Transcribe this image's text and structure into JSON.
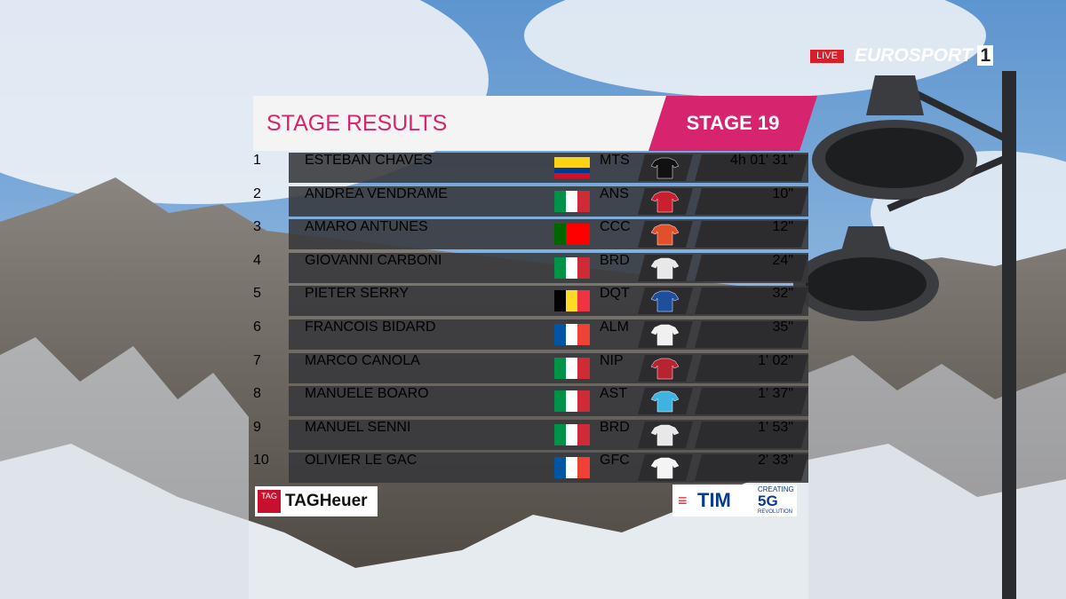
{
  "broadcast": {
    "live": "LIVE",
    "channel": "EUROSPORT",
    "channel_number": "1"
  },
  "header": {
    "title": "STAGE RESULTS",
    "stage": "STAGE 19"
  },
  "table": {
    "rows": [
      {
        "rank": 1,
        "name": "ESTEBAN CHAVES",
        "team": "MTS",
        "time": "4h 01' 31\""
      },
      {
        "rank": 2,
        "name": "ANDREA VENDRAME",
        "team": "ANS",
        "time": "10\""
      },
      {
        "rank": 3,
        "name": "AMARO ANTUNES",
        "team": "CCC",
        "time": "12\""
      },
      {
        "rank": 4,
        "name": "GIOVANNI CARBONI",
        "team": "BRD",
        "time": "24\""
      },
      {
        "rank": 5,
        "name": "PIETER SERRY",
        "team": "DQT",
        "time": "32\""
      },
      {
        "rank": 6,
        "name": "FRANCOIS BIDARD",
        "team": "ALM",
        "time": "35\""
      },
      {
        "rank": 7,
        "name": "MARCO CANOLA",
        "team": "NIP",
        "time": "1' 02\""
      },
      {
        "rank": 8,
        "name": "MANUELE BOARO",
        "team": "AST",
        "time": "1' 37\""
      },
      {
        "rank": 9,
        "name": "MANUEL SENNI",
        "team": "BRD",
        "time": "1' 53\""
      },
      {
        "rank": 10,
        "name": "OLIVIER LE GAC",
        "team": "GFC",
        "time": "2' 33\""
      }
    ]
  },
  "sponsors": {
    "tag_badge": "TAG",
    "tag_name": "TAGHeuer",
    "tim": "TIM",
    "tim_tag_top": "CREATING",
    "tim_tag_main": "5G",
    "tim_tag_bottom": "REVOLUTION"
  }
}
